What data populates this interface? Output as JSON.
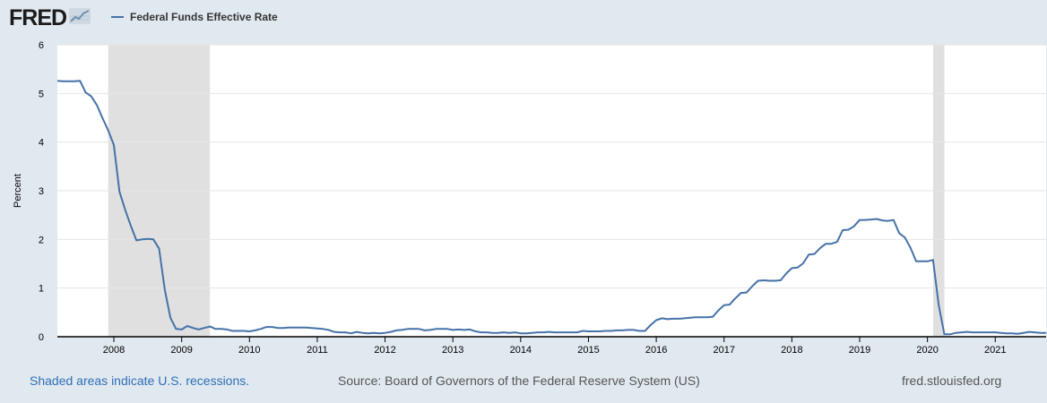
{
  "header": {
    "logo_text": "FRED",
    "legend_label": "Federal Funds Effective Rate"
  },
  "footer": {
    "recession_note": "Shaded areas indicate U.S. recessions.",
    "source": "Source: Board of Governors of the Federal Reserve System (US)",
    "site": "fred.stlouisfed.org"
  },
  "colors": {
    "series": "#4572a7",
    "recession": "#e0e0e0",
    "background": "#e1e9f0",
    "plot": "#ffffff"
  },
  "icons": [
    "fred-graph-icon"
  ],
  "chart_data": {
    "type": "line",
    "title": "",
    "xlabel": "",
    "ylabel": "Percent",
    "ylim": [
      0,
      6
    ],
    "yticks": [
      0,
      1,
      2,
      3,
      4,
      5,
      6
    ],
    "xlim": [
      "2007-03",
      "2021-10"
    ],
    "xticks": [
      "2008",
      "2009",
      "2010",
      "2011",
      "2012",
      "2013",
      "2014",
      "2015",
      "2016",
      "2017",
      "2018",
      "2019",
      "2020",
      "2021"
    ],
    "grid": "horizontal",
    "legend": "top-left",
    "recessions": [
      {
        "start": "2007-12",
        "end": "2009-06"
      },
      {
        "start": "2020-02",
        "end": "2020-04"
      }
    ],
    "series": [
      {
        "name": "Federal Funds Effective Rate",
        "color": "#4572a7",
        "points": [
          [
            "2007-03",
            5.26
          ],
          [
            "2007-04",
            5.25
          ],
          [
            "2007-05",
            5.25
          ],
          [
            "2007-06",
            5.25
          ],
          [
            "2007-07",
            5.26
          ],
          [
            "2007-08",
            5.02
          ],
          [
            "2007-09",
            4.94
          ],
          [
            "2007-10",
            4.76
          ],
          [
            "2007-11",
            4.49
          ],
          [
            "2007-12",
            4.24
          ],
          [
            "2008-01",
            3.94
          ],
          [
            "2008-02",
            2.98
          ],
          [
            "2008-03",
            2.61
          ],
          [
            "2008-04",
            2.28
          ],
          [
            "2008-05",
            1.98
          ],
          [
            "2008-06",
            2.0
          ],
          [
            "2008-07",
            2.01
          ],
          [
            "2008-08",
            2.0
          ],
          [
            "2008-09",
            1.81
          ],
          [
            "2008-10",
            0.97
          ],
          [
            "2008-11",
            0.39
          ],
          [
            "2008-12",
            0.16
          ],
          [
            "2009-01",
            0.15
          ],
          [
            "2009-02",
            0.22
          ],
          [
            "2009-03",
            0.18
          ],
          [
            "2009-04",
            0.15
          ],
          [
            "2009-05",
            0.18
          ],
          [
            "2009-06",
            0.21
          ],
          [
            "2009-07",
            0.16
          ],
          [
            "2009-08",
            0.16
          ],
          [
            "2009-09",
            0.15
          ],
          [
            "2009-10",
            0.12
          ],
          [
            "2009-11",
            0.12
          ],
          [
            "2009-12",
            0.12
          ],
          [
            "2010-01",
            0.11
          ],
          [
            "2010-02",
            0.13
          ],
          [
            "2010-03",
            0.16
          ],
          [
            "2010-04",
            0.2
          ],
          [
            "2010-05",
            0.2
          ],
          [
            "2010-06",
            0.18
          ],
          [
            "2010-07",
            0.18
          ],
          [
            "2010-08",
            0.19
          ],
          [
            "2010-09",
            0.19
          ],
          [
            "2010-10",
            0.19
          ],
          [
            "2010-11",
            0.19
          ],
          [
            "2010-12",
            0.18
          ],
          [
            "2011-01",
            0.17
          ],
          [
            "2011-02",
            0.16
          ],
          [
            "2011-03",
            0.14
          ],
          [
            "2011-04",
            0.1
          ],
          [
            "2011-05",
            0.09
          ],
          [
            "2011-06",
            0.09
          ],
          [
            "2011-07",
            0.07
          ],
          [
            "2011-08",
            0.1
          ],
          [
            "2011-09",
            0.08
          ],
          [
            "2011-10",
            0.07
          ],
          [
            "2011-11",
            0.08
          ],
          [
            "2011-12",
            0.07
          ],
          [
            "2012-01",
            0.08
          ],
          [
            "2012-02",
            0.1
          ],
          [
            "2012-03",
            0.13
          ],
          [
            "2012-04",
            0.14
          ],
          [
            "2012-05",
            0.16
          ],
          [
            "2012-06",
            0.16
          ],
          [
            "2012-07",
            0.16
          ],
          [
            "2012-08",
            0.13
          ],
          [
            "2012-09",
            0.14
          ],
          [
            "2012-10",
            0.16
          ],
          [
            "2012-11",
            0.16
          ],
          [
            "2012-12",
            0.16
          ],
          [
            "2013-01",
            0.14
          ],
          [
            "2013-02",
            0.15
          ],
          [
            "2013-03",
            0.14
          ],
          [
            "2013-04",
            0.15
          ],
          [
            "2013-05",
            0.11
          ],
          [
            "2013-06",
            0.09
          ],
          [
            "2013-07",
            0.09
          ],
          [
            "2013-08",
            0.08
          ],
          [
            "2013-09",
            0.08
          ],
          [
            "2013-10",
            0.09
          ],
          [
            "2013-11",
            0.08
          ],
          [
            "2013-12",
            0.09
          ],
          [
            "2014-01",
            0.07
          ],
          [
            "2014-02",
            0.07
          ],
          [
            "2014-03",
            0.08
          ],
          [
            "2014-04",
            0.09
          ],
          [
            "2014-05",
            0.09
          ],
          [
            "2014-06",
            0.1
          ],
          [
            "2014-07",
            0.09
          ],
          [
            "2014-08",
            0.09
          ],
          [
            "2014-09",
            0.09
          ],
          [
            "2014-10",
            0.09
          ],
          [
            "2014-11",
            0.09
          ],
          [
            "2014-12",
            0.12
          ],
          [
            "2015-01",
            0.11
          ],
          [
            "2015-02",
            0.11
          ],
          [
            "2015-03",
            0.11
          ],
          [
            "2015-04",
            0.12
          ],
          [
            "2015-05",
            0.12
          ],
          [
            "2015-06",
            0.13
          ],
          [
            "2015-07",
            0.13
          ],
          [
            "2015-08",
            0.14
          ],
          [
            "2015-09",
            0.14
          ],
          [
            "2015-10",
            0.12
          ],
          [
            "2015-11",
            0.12
          ],
          [
            "2015-12",
            0.24
          ],
          [
            "2016-01",
            0.34
          ],
          [
            "2016-02",
            0.38
          ],
          [
            "2016-03",
            0.36
          ],
          [
            "2016-04",
            0.37
          ],
          [
            "2016-05",
            0.37
          ],
          [
            "2016-06",
            0.38
          ],
          [
            "2016-07",
            0.39
          ],
          [
            "2016-08",
            0.4
          ],
          [
            "2016-09",
            0.4
          ],
          [
            "2016-10",
            0.4
          ],
          [
            "2016-11",
            0.41
          ],
          [
            "2016-12",
            0.54
          ],
          [
            "2017-01",
            0.65
          ],
          [
            "2017-02",
            0.66
          ],
          [
            "2017-03",
            0.79
          ],
          [
            "2017-04",
            0.9
          ],
          [
            "2017-05",
            0.91
          ],
          [
            "2017-06",
            1.04
          ],
          [
            "2017-07",
            1.15
          ],
          [
            "2017-08",
            1.16
          ],
          [
            "2017-09",
            1.15
          ],
          [
            "2017-10",
            1.15
          ],
          [
            "2017-11",
            1.16
          ],
          [
            "2017-12",
            1.3
          ],
          [
            "2018-01",
            1.41
          ],
          [
            "2018-02",
            1.42
          ],
          [
            "2018-03",
            1.51
          ],
          [
            "2018-04",
            1.69
          ],
          [
            "2018-05",
            1.7
          ],
          [
            "2018-06",
            1.82
          ],
          [
            "2018-07",
            1.91
          ],
          [
            "2018-08",
            1.91
          ],
          [
            "2018-09",
            1.95
          ],
          [
            "2018-10",
            2.19
          ],
          [
            "2018-11",
            2.2
          ],
          [
            "2018-12",
            2.27
          ],
          [
            "2019-01",
            2.4
          ],
          [
            "2019-02",
            2.4
          ],
          [
            "2019-03",
            2.41
          ],
          [
            "2019-04",
            2.42
          ],
          [
            "2019-05",
            2.39
          ],
          [
            "2019-06",
            2.38
          ],
          [
            "2019-07",
            2.4
          ],
          [
            "2019-08",
            2.13
          ],
          [
            "2019-09",
            2.04
          ],
          [
            "2019-10",
            1.83
          ],
          [
            "2019-11",
            1.55
          ],
          [
            "2019-12",
            1.55
          ],
          [
            "2020-01",
            1.55
          ],
          [
            "2020-02",
            1.58
          ],
          [
            "2020-03",
            0.65
          ],
          [
            "2020-04",
            0.05
          ],
          [
            "2020-05",
            0.05
          ],
          [
            "2020-06",
            0.08
          ],
          [
            "2020-07",
            0.09
          ],
          [
            "2020-08",
            0.1
          ],
          [
            "2020-09",
            0.09
          ],
          [
            "2020-10",
            0.09
          ],
          [
            "2020-11",
            0.09
          ],
          [
            "2020-12",
            0.09
          ],
          [
            "2021-01",
            0.09
          ],
          [
            "2021-02",
            0.08
          ],
          [
            "2021-03",
            0.07
          ],
          [
            "2021-04",
            0.07
          ],
          [
            "2021-05",
            0.06
          ],
          [
            "2021-06",
            0.08
          ],
          [
            "2021-07",
            0.1
          ],
          [
            "2021-08",
            0.09
          ],
          [
            "2021-09",
            0.08
          ],
          [
            "2021-10",
            0.08
          ]
        ]
      }
    ]
  }
}
